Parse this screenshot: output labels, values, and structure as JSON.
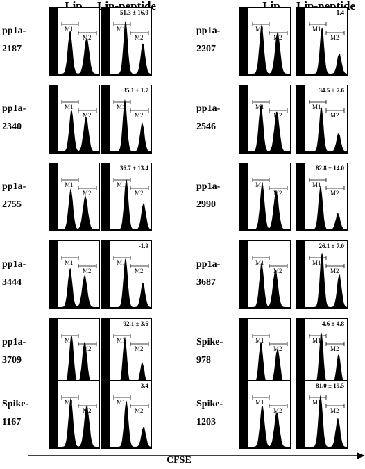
{
  "headers": {
    "lip": "Lip",
    "lip_peptide": "Lip-peptide"
  },
  "axis_label": "CFSE",
  "gate_labels": {
    "m1": "M1",
    "m2": "M2"
  },
  "chart_data": {
    "type": "histogram-grid",
    "columns": [
      "Lip",
      "Lip-peptide"
    ],
    "panels": [
      {
        "line1": "pp1a-",
        "line2": "2187",
        "value": "51.3 ± 16.9"
      },
      {
        "line1": "pp1a-",
        "line2": "2207",
        "value": "-1.4"
      },
      {
        "line1": "pp1a-",
        "line2": "2340",
        "value": "35.1 ± 1.7"
      },
      {
        "line1": "pp1a-",
        "line2": "2546",
        "value": "34.5 ± 7.6"
      },
      {
        "line1": "pp1a-",
        "line2": "2755",
        "value": "36.7 ± 13.4"
      },
      {
        "line1": "pp1a-",
        "line2": "2990",
        "value": "82.8 ± 14.0"
      },
      {
        "line1": "pp1a-",
        "line2": "3444",
        "value": "-1.9"
      },
      {
        "line1": "pp1a-",
        "line2": "3687",
        "value": "26.1 ± 7.0"
      },
      {
        "line1": "pp1a-",
        "line2": "3709",
        "value": "92.1 ± 3.6"
      },
      {
        "line1": "Spike-",
        "line2": "978",
        "value": "4.6 ± 4.8"
      },
      {
        "line1": "Spike-",
        "line2": "1167",
        "value": "-3.4"
      },
      {
        "line1": "Spike-",
        "line2": "1203",
        "value": "81.0 ± 19.5"
      }
    ]
  }
}
